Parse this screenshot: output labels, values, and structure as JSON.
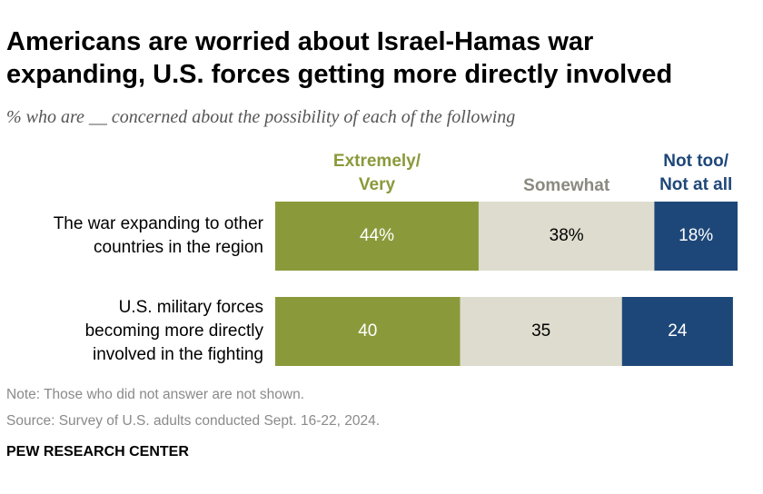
{
  "title_lines": [
    "Americans are worried about Israel-Hamas war",
    "expanding, U.S. forces getting more directly involved"
  ],
  "subtitle": "% who are __ concerned about the possibility of each of the following",
  "note": "Note: Those who did not answer are not shown.",
  "source": "Source: Survey of U.S. adults conducted Sept. 16-22, 2024.",
  "brand": "PEW RESEARCH CENTER",
  "colors": {
    "extremely": "#8a9a3b",
    "somewhat": "#dedcce",
    "not_too": "#1e4779",
    "label_dark": "#000000",
    "label_light": "#ffffff",
    "somewhat_header": "#8a8a80"
  },
  "chart_data": {
    "type": "bar",
    "orientation": "horizontal",
    "stacked": true,
    "categories": [
      [
        "The war expanding to other",
        "countries in the region"
      ],
      [
        "U.S. military forces",
        "becoming more directly",
        "involved in the fighting"
      ]
    ],
    "series": [
      {
        "key": "extremely",
        "name": [
          "Extremely/",
          "Very"
        ],
        "values": [
          44,
          40
        ],
        "labels": [
          "44%",
          "40"
        ]
      },
      {
        "key": "somewhat",
        "name": [
          "Somewhat"
        ],
        "values": [
          38,
          35
        ],
        "labels": [
          "38%",
          "35"
        ]
      },
      {
        "key": "not_too",
        "name": [
          "Not too/",
          "Not at all"
        ],
        "values": [
          18,
          24
        ],
        "labels": [
          "18%",
          "24"
        ]
      }
    ],
    "xlim": [
      0,
      100
    ],
    "legend": "top, above bars"
  }
}
